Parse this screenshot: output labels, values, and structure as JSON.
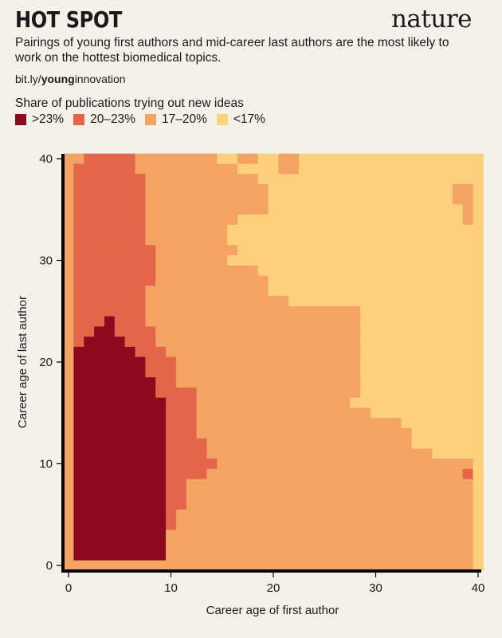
{
  "header": {
    "title": "HOT SPOT",
    "brand": "nature",
    "subtitle": "Pairings of young first authors and mid-career last authors are the most likely to work on the hottest biomedical topics.",
    "link_prefix": "bit.ly/",
    "link_bold": "young",
    "link_suffix": "innovation"
  },
  "chart_data": {
    "type": "heatmap",
    "title": "HOT SPOT",
    "xlabel": "Career age of first author",
    "ylabel": "Career age of last author",
    "xlim": [
      0,
      40
    ],
    "ylim": [
      0,
      40
    ],
    "xticks": [
      0,
      10,
      20,
      30,
      40
    ],
    "yticks": [
      0,
      10,
      20,
      30,
      40
    ],
    "legend_title": "Share of publications trying out new ideas",
    "legend_position": "top-left",
    "categories": [
      {
        "label": ">23%",
        "color": "#8c0a1e"
      },
      {
        "label": "20–23%",
        "color": "#e3654a"
      },
      {
        "label": "17–20%",
        "color": "#f4a462"
      },
      {
        "label": "<17%",
        "color": "#fdd07e"
      }
    ],
    "cell_size": 1,
    "level_code": "0 = >23%, 1 = 20–23%, 2 = 17–20%, 3 = <17%",
    "y_order": "rows listed from last-author age 40 down to 0",
    "rows": [
      "22111112222222233223322333333333333333333",
      "21111112222222222333322333333333333333333",
      "21111111222222222223333333333333333333333",
      "21111111222222222222333333333333333333223",
      "21111111222222222222333333333333333333223",
      "21111111222222222222333333333333333333323",
      "21111111222222222333333333333333333333323",
      "21111111222222223333333333333333333333333",
      "21111111222222223333333333333333333333333",
      "21111111122222222333333333333333333333333",
      "21111111122222223333333333333333333333333",
      "21111111122222222223333333333333333333333",
      "21111111122222222222333333333333333333333",
      "21111111222222222222333333333333333333333",
      "21111111222222222222223333333333333333333",
      "21111111222222222222222222222333333333333",
      "21110111222222222222222222222333333333333",
      "21100111122222222222222222222333333333333",
      "21000011122222222222222222222333333333333",
      "20000001112222222222222222222333333333333",
      "20000000111222222222222222222333333333333",
      "20000000111222222222222222222333333333333",
      "20000000011222222222222222222333333333333",
      "20000000011112222222222222222333333333333",
      "20000000001112222222222222223333333333333",
      "20000000001112222222222222222233333333333",
      "20000000001112222222222222222222233333333",
      "20000000001112222222222222222222223333333",
      "20000000001111222222222222222222223333333",
      "20000000001111222222222222222222222233333",
      "20000000001111122222222222222222222222223",
      "20000000001111222222222222222222222222213",
      "20000000001122222222222222222222222222223",
      "20000000001122222222222222222222222222223",
      "20000000001122222222222222222222222222223",
      "20000000001222222222222222222222222222223",
      "20000000001222222222222222222222222222223",
      "20000000002222222222222222222222222222223",
      "20000000002222222222222222222222222222223",
      "20000000002222222222222222222222222222223",
      "22222222222222222222222222222222222222223"
    ]
  }
}
